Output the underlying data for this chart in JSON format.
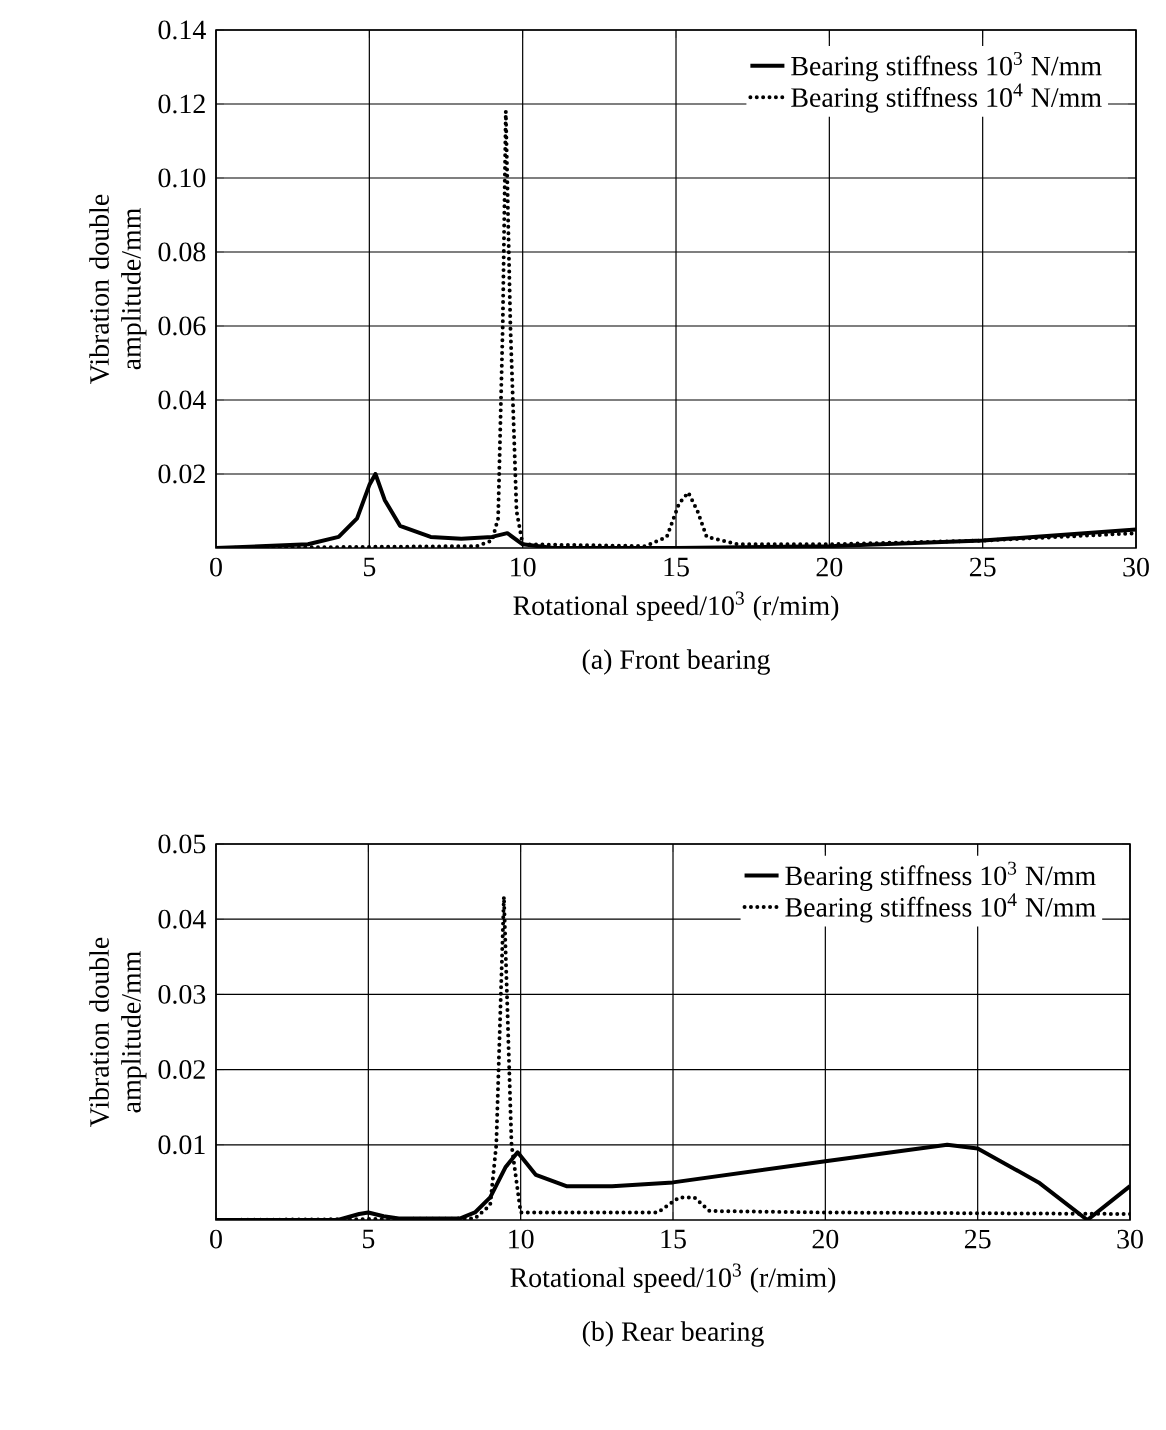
{
  "chart_data": [
    {
      "type": "line",
      "title": "(a) Front bearing",
      "xlabel": "Rotational speed/10$^{3}$ (r/mim)",
      "ylabel": "Vibration double amplitude/mm",
      "xlim": [
        0,
        30
      ],
      "ylim": [
        0,
        0.14
      ],
      "xticks": [
        0,
        5,
        10,
        15,
        20,
        25,
        30
      ],
      "yticks": [
        0.02,
        0.04,
        0.06,
        0.08,
        {
          "value": 0.1,
          "label": "0.10"
        },
        0.12,
        0.14
      ],
      "grid": true,
      "legend": "top right",
      "marker": "none",
      "series": [
        {
          "name": "Bearing stiffness 10$^{3}$ N/mm",
          "color": "#000000",
          "line_style": "solid",
          "x": [
            0,
            3,
            4,
            4.6,
            5,
            5.2,
            5.5,
            6,
            7,
            8,
            9,
            9.5,
            10,
            11,
            15,
            20,
            25,
            30
          ],
          "values": [
            0,
            0.001,
            0.003,
            0.008,
            0.017,
            0.02,
            0.013,
            0.006,
            0.003,
            0.0025,
            0.003,
            0.004,
            0.001,
            0,
            0,
            0.0005,
            0.002,
            0.005
          ]
        },
        {
          "name": "Bearing stiffness 10$^{4}$ N/mm",
          "color": "#000000",
          "line_style": "dotted",
          "x": [
            0,
            8.5,
            9,
            9.2,
            9.35,
            9.45,
            9.6,
            9.8,
            10,
            14,
            14.7,
            15.1,
            15.4,
            15.7,
            16,
            17,
            20,
            25,
            30
          ],
          "values": [
            0,
            0.0005,
            0.002,
            0.008,
            0.06,
            0.118,
            0.06,
            0.01,
            0.001,
            0.0005,
            0.003,
            0.012,
            0.015,
            0.01,
            0.003,
            0.001,
            0.001,
            0.002,
            0.004
          ]
        }
      ]
    },
    {
      "type": "line",
      "title": "(b) Rear bearing",
      "xlabel": "Rotational speed/10$^{3}$ (r/mim)",
      "ylabel": "Vibration double amplitude/mm",
      "xlim": [
        0,
        30
      ],
      "ylim": [
        0,
        0.05
      ],
      "xticks": [
        0,
        5,
        10,
        15,
        20,
        25,
        30
      ],
      "yticks": [
        0.01,
        0.02,
        0.03,
        0.04,
        0.05
      ],
      "grid": true,
      "legend": "top right",
      "marker": "none",
      "series": [
        {
          "name": "Bearing stiffness 10$^{3}$ N/mm",
          "color": "#000000",
          "line_style": "solid",
          "x": [
            0,
            4,
            4.7,
            5,
            5.5,
            6,
            8,
            8.5,
            9,
            9.5,
            9.9,
            10.5,
            11.5,
            13,
            15,
            20,
            24,
            25,
            27,
            28.6,
            30
          ],
          "values": [
            0,
            0,
            0.0008,
            0.001,
            0.0005,
            0.0002,
            0.0002,
            0.001,
            0.003,
            0.007,
            0.009,
            0.006,
            0.0045,
            0.0045,
            0.005,
            0.0078,
            0.01,
            0.0095,
            0.005,
            0,
            0.0045
          ]
        },
        {
          "name": "Bearing stiffness 10$^{4}$ N/mm",
          "color": "#000000",
          "line_style": "dotted",
          "x": [
            0,
            8.5,
            9,
            9.2,
            9.35,
            9.45,
            9.55,
            9.7,
            10,
            14.5,
            15.2,
            15.7,
            16.2,
            20,
            30
          ],
          "values": [
            0,
            0.0002,
            0.002,
            0.01,
            0.03,
            0.043,
            0.03,
            0.01,
            0.001,
            0.001,
            0.003,
            0.003,
            0.0012,
            0.001,
            0.0008
          ]
        }
      ]
    }
  ]
}
